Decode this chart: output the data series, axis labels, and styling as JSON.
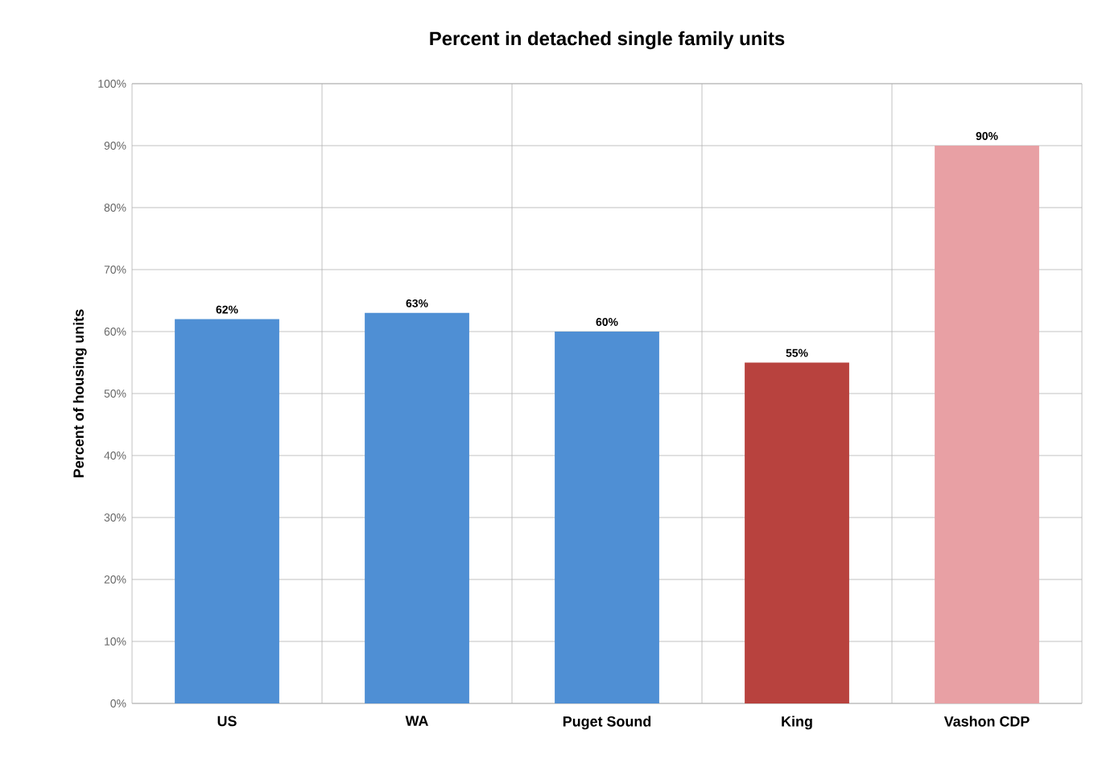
{
  "chart_data": {
    "type": "bar",
    "title": "Percent in detached single family units",
    "ylabel": "Percent of housing units",
    "categories": [
      "US",
      "WA",
      "Puget Sound",
      "King",
      "Vashon CDP"
    ],
    "values": [
      62,
      63,
      60,
      55,
      90
    ],
    "value_labels": [
      "62%",
      "63%",
      "60%",
      "55%",
      "90%"
    ],
    "colors": [
      "#4f8fd4",
      "#4f8fd4",
      "#4f8fd4",
      "#b8423e",
      "#e8a0a4"
    ],
    "ylim": [
      0,
      100
    ],
    "yticks": [
      {
        "value": 0,
        "label": "0%"
      },
      {
        "value": 10,
        "label": "10%"
      },
      {
        "value": 20,
        "label": "20%"
      },
      {
        "value": 30,
        "label": "30%"
      },
      {
        "value": 40,
        "label": "40%"
      },
      {
        "value": 50,
        "label": "50%"
      },
      {
        "value": 60,
        "label": "60%"
      },
      {
        "value": 70,
        "label": "70%"
      },
      {
        "value": 80,
        "label": "80%"
      },
      {
        "value": 90,
        "label": "90%"
      },
      {
        "value": 100,
        "label": "100%"
      }
    ],
    "grid": true
  }
}
